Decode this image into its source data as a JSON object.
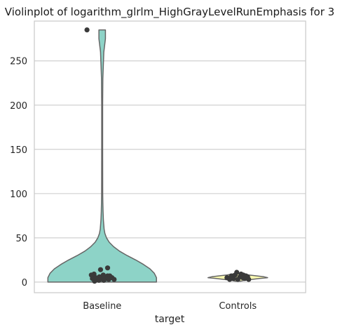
{
  "chart_data": {
    "type": "violin",
    "title": "Violinplot of logarithm_glrlm_HighGrayLevelRunEmphasis for 3",
    "xlabel": "target",
    "ylabel": "",
    "categories": [
      "Baseline",
      "Controls"
    ],
    "ylim": [
      -12,
      295
    ],
    "yticks": [
      0,
      50,
      100,
      150,
      200,
      250
    ],
    "grid": true,
    "colors": {
      "Baseline": "#8dd3c7",
      "Controls": "#ffffb3",
      "outline": "#666666",
      "points": "#3a3a3a",
      "grid": "#d0d0d0",
      "spine": "#c8c8c8"
    },
    "violins": [
      {
        "category": "Baseline",
        "profile": [
          [
            0,
            1.0
          ],
          [
            5,
            1.0
          ],
          [
            10,
            0.96
          ],
          [
            15,
            0.88
          ],
          [
            20,
            0.76
          ],
          [
            25,
            0.62
          ],
          [
            30,
            0.46
          ],
          [
            35,
            0.32
          ],
          [
            40,
            0.21
          ],
          [
            45,
            0.13
          ],
          [
            50,
            0.08
          ],
          [
            55,
            0.05
          ],
          [
            60,
            0.035
          ],
          [
            70,
            0.022
          ],
          [
            80,
            0.016
          ],
          [
            90,
            0.012
          ],
          [
            100,
            0.01
          ],
          [
            150,
            0.008
          ],
          [
            200,
            0.008
          ],
          [
            230,
            0.012
          ],
          [
            260,
            0.03
          ],
          [
            275,
            0.06
          ],
          [
            280,
            0.06
          ],
          [
            285,
            0.06
          ]
        ],
        "points": [
          [
            285,
            -0.28
          ],
          [
            16,
            0.1
          ],
          [
            14,
            -0.03
          ],
          [
            9,
            -0.15
          ],
          [
            8,
            -0.2
          ],
          [
            8,
            0.02
          ],
          [
            7,
            0.1
          ],
          [
            7,
            0.14
          ],
          [
            6,
            -0.05
          ],
          [
            6,
            0.05
          ],
          [
            5,
            0.18
          ],
          [
            5,
            -0.12
          ],
          [
            4,
            0.0
          ],
          [
            4,
            0.08
          ],
          [
            4,
            -0.18
          ],
          [
            3,
            0.12
          ],
          [
            3,
            -0.1
          ],
          [
            3,
            0.22
          ],
          [
            2,
            0.03
          ],
          [
            2,
            -0.06
          ],
          [
            1,
            -0.14
          ]
        ]
      },
      {
        "category": "Controls",
        "profile": [
          [
            1,
            0.05
          ],
          [
            2,
            0.12
          ],
          [
            3,
            0.25
          ],
          [
            4,
            0.4
          ],
          [
            5,
            0.55
          ],
          [
            6,
            0.48
          ],
          [
            7,
            0.34
          ],
          [
            8,
            0.2
          ],
          [
            9,
            0.1
          ],
          [
            10,
            0.04
          ]
        ],
        "points": [
          [
            11,
            -0.02
          ],
          [
            9,
            0.06
          ],
          [
            8,
            0.1
          ],
          [
            8,
            -0.05
          ],
          [
            7,
            0.15
          ],
          [
            7,
            -0.12
          ],
          [
            6,
            0.04
          ],
          [
            6,
            0.18
          ],
          [
            5,
            -0.2
          ],
          [
            5,
            0.09
          ],
          [
            4,
            0.13
          ],
          [
            4,
            -0.08
          ],
          [
            3,
            0.0
          ],
          [
            3,
            0.2
          ],
          [
            3,
            -0.15
          ]
        ]
      }
    ]
  }
}
